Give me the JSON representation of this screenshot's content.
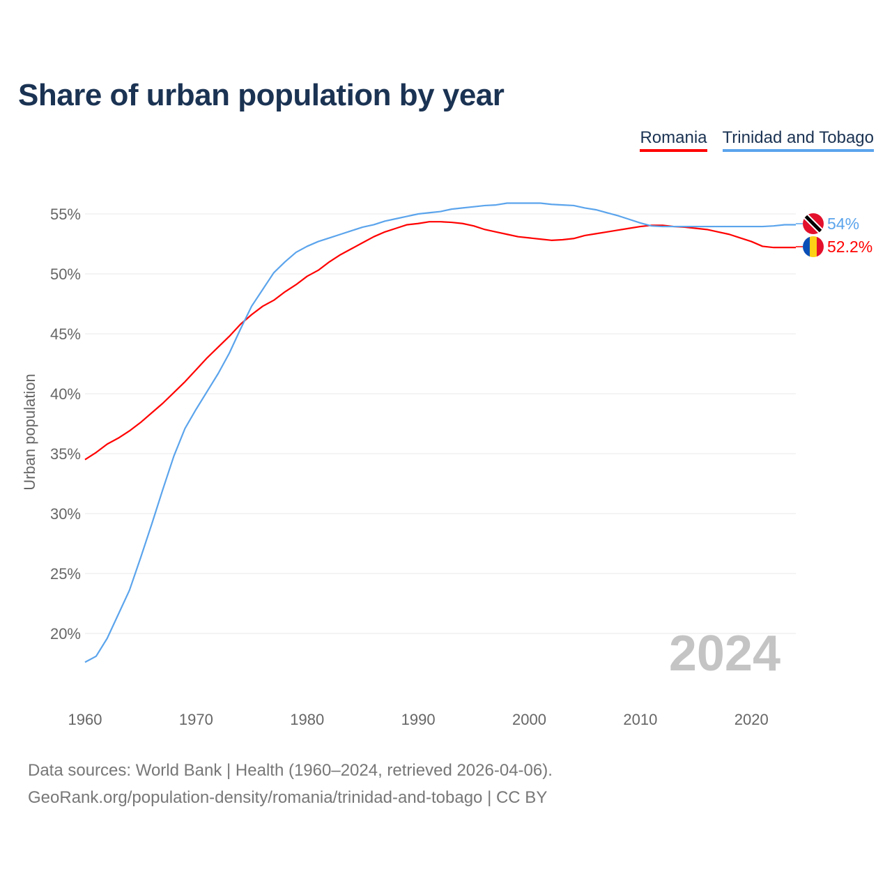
{
  "chart_data": {
    "type": "line",
    "title": "Share of urban population by year",
    "ylabel": "Urban population",
    "xlabel": "",
    "xlim": [
      1960,
      2024
    ],
    "ylim": [
      15,
      57.5
    ],
    "yticks": [
      20,
      25,
      30,
      35,
      40,
      45,
      50,
      55
    ],
    "ytick_labels": [
      "20%",
      "25%",
      "30%",
      "35%",
      "40%",
      "45%",
      "50%",
      "55%"
    ],
    "xticks": [
      1960,
      1970,
      1980,
      1990,
      2000,
      2010,
      2020
    ],
    "xtick_labels": [
      "1960",
      "1970",
      "1980",
      "1990",
      "2000",
      "2010",
      "2020"
    ],
    "grid": true,
    "legend_position": "top-right",
    "year_watermark": "2024",
    "x": [
      1960,
      1961,
      1962,
      1963,
      1964,
      1965,
      1966,
      1967,
      1968,
      1969,
      1970,
      1971,
      1972,
      1973,
      1974,
      1975,
      1976,
      1977,
      1978,
      1979,
      1980,
      1981,
      1982,
      1983,
      1984,
      1985,
      1986,
      1987,
      1988,
      1989,
      1990,
      1991,
      1992,
      1993,
      1994,
      1995,
      1996,
      1997,
      1998,
      1999,
      2000,
      2001,
      2002,
      2003,
      2004,
      2005,
      2006,
      2007,
      2008,
      2009,
      2010,
      2011,
      2012,
      2013,
      2014,
      2015,
      2016,
      2017,
      2018,
      2019,
      2020,
      2021,
      2022,
      2023,
      2024
    ],
    "series": [
      {
        "name": "Romania",
        "color": "#ff0000",
        "end_label": "52.2%",
        "values": [
          34.5,
          35.1,
          35.8,
          36.3,
          36.9,
          37.6,
          38.4,
          39.2,
          40.1,
          41.0,
          42.0,
          43.0,
          43.9,
          44.8,
          45.8,
          46.6,
          47.3,
          47.8,
          48.5,
          49.1,
          49.8,
          50.3,
          51.0,
          51.6,
          52.1,
          52.6,
          53.1,
          53.5,
          53.8,
          54.1,
          54.2,
          54.35,
          54.35,
          54.3,
          54.2,
          54.0,
          53.7,
          53.5,
          53.3,
          53.1,
          53.0,
          52.9,
          52.8,
          52.85,
          52.95,
          53.2,
          53.35,
          53.5,
          53.65,
          53.8,
          53.95,
          54.05,
          54.05,
          53.95,
          53.9,
          53.8,
          53.7,
          53.5,
          53.3,
          53.0,
          52.7,
          52.3,
          52.2,
          52.2,
          52.2
        ]
      },
      {
        "name": "Trinidad and Tobago",
        "color": "#5ba4ec",
        "end_label": "54%",
        "values": [
          17.6,
          18.1,
          19.6,
          21.6,
          23.6,
          26.3,
          29.1,
          32.0,
          34.8,
          37.1,
          38.7,
          40.2,
          41.7,
          43.4,
          45.4,
          47.3,
          48.7,
          50.1,
          51.0,
          51.8,
          52.3,
          52.7,
          53.0,
          53.3,
          53.6,
          53.9,
          54.1,
          54.4,
          54.6,
          54.8,
          55.0,
          55.1,
          55.2,
          55.4,
          55.5,
          55.6,
          55.7,
          55.75,
          55.9,
          55.9,
          55.9,
          55.9,
          55.8,
          55.75,
          55.7,
          55.5,
          55.35,
          55.1,
          54.85,
          54.55,
          54.25,
          54.0,
          53.95,
          53.95,
          53.95,
          53.95,
          53.95,
          53.95,
          53.95,
          53.95,
          53.95,
          53.95,
          54.0,
          54.1,
          54.1
        ]
      }
    ]
  },
  "footer": {
    "line1": "Data sources: World Bank | Health (1960–2024, retrieved 2026-04-06).",
    "line2": "GeoRank.org/population-density/romania/trinidad-and-tobago | CC BY"
  }
}
